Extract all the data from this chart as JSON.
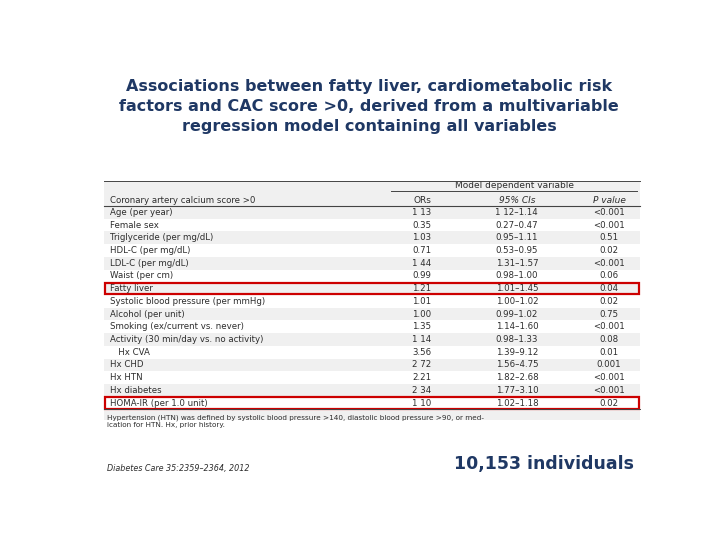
{
  "title": "Associations between fatty liver, cardiometabolic risk\nfactors and CAC score >0, derived from a multivariable\nregression model containing all variables",
  "title_color": "#1f3864",
  "title_fontsize": 11.5,
  "bg_color": "#ffffff",
  "model_header": "Model dependent variable",
  "col_header_label": "Coronary artery calcium score >0",
  "col_headers": [
    "ORs",
    "95% CIs",
    "P value"
  ],
  "rows": [
    {
      "label": "Age (per year)",
      "or": "1 13",
      "ci": "1 12–1.14",
      "p": "<0.001",
      "highlight": false,
      "shaded": true
    },
    {
      "label": "Female sex",
      "or": "0.35",
      "ci": "0.27–0.47",
      "p": "<0.001",
      "highlight": false,
      "shaded": false
    },
    {
      "label": "Triglyceride (per mg/dL)",
      "or": "1.03",
      "ci": "0.95–1.11",
      "p": "0.51",
      "highlight": false,
      "shaded": true
    },
    {
      "label": "HDL-C (per mg/dL)",
      "or": "0.71",
      "ci": "0.53–0.95",
      "p": "0.02",
      "highlight": false,
      "shaded": false
    },
    {
      "label": "LDL-C (per mg/dL)",
      "or": "1 44",
      "ci": "1.31–1.57",
      "p": "<0.001",
      "highlight": false,
      "shaded": true
    },
    {
      "label": "Waist (per cm)",
      "or": "0.99",
      "ci": "0.98–1.00",
      "p": "0.06",
      "highlight": false,
      "shaded": false
    },
    {
      "label": "Fatty liver",
      "or": "1.21",
      "ci": "1.01–1.45",
      "p": "0.04",
      "highlight": true,
      "shaded": true
    },
    {
      "label": "Systolic blood pressure (per mmHg)",
      "or": "1.01",
      "ci": "1.00–1.02",
      "p": "0.02",
      "highlight": false,
      "shaded": false
    },
    {
      "label": "Alcohol (per unit)",
      "or": "1.00",
      "ci": "0.99–1.02",
      "p": "0.75",
      "highlight": false,
      "shaded": true
    },
    {
      "label": "Smoking (ex/current vs. never)",
      "or": "1.35",
      "ci": "1.14–1.60",
      "p": "<0.001",
      "highlight": false,
      "shaded": false
    },
    {
      "label": "Activity (30 min/day vs. no activity)",
      "or": "1 14",
      "ci": "0.98–1.33",
      "p": "0.08",
      "highlight": false,
      "shaded": true
    },
    {
      "label": "   Hx CVA",
      "or": "3.56",
      "ci": "1.39–9.12",
      "p": "0.01",
      "highlight": false,
      "shaded": false
    },
    {
      "label": "Hx CHD",
      "or": "2 72",
      "ci": "1.56–4.75",
      "p": "0.001",
      "highlight": false,
      "shaded": true
    },
    {
      "label": "Hx HTN",
      "or": "2.21",
      "ci": "1.82–2.68",
      "p": "<0.001",
      "highlight": false,
      "shaded": false
    },
    {
      "label": "Hx diabetes",
      "or": "2 34",
      "ci": "1.77–3.10",
      "p": "<0.001",
      "highlight": false,
      "shaded": true
    },
    {
      "label": "HOMA-IR (per 1.0 unit)",
      "or": "1 10",
      "ci": "1.02–1.18",
      "p": "0.02",
      "highlight": true,
      "shaded": false
    }
  ],
  "footnote": "Hypertension (HTN) was defined by systolic blood pressure >140, diastolic blood pressure >90, or med-\nication for HTN. Hx, prior history.",
  "citation": "Diabetes Care 35:2359–2364, 2012",
  "bottom_right_text": "10,153 individuals",
  "highlight_color": "#cc0000",
  "shaded_row_color": "#dedede",
  "text_color": "#2d2d2d",
  "header_line_color": "#444444",
  "table_bg_color": "#f0f0f0"
}
